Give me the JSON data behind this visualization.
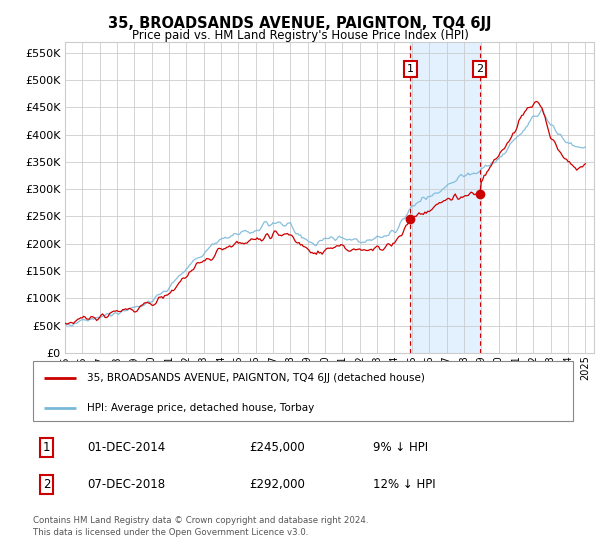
{
  "title": "35, BROADSANDS AVENUE, PAIGNTON, TQ4 6JJ",
  "subtitle": "Price paid vs. HM Land Registry's House Price Index (HPI)",
  "yticks": [
    0,
    50000,
    100000,
    150000,
    200000,
    250000,
    300000,
    350000,
    400000,
    450000,
    500000,
    550000
  ],
  "ylim": [
    0,
    570000
  ],
  "xlim_start": 1995.0,
  "xlim_end": 2025.5,
  "hpi_color": "#7ab8d9",
  "sale_color": "#cc0000",
  "sale1_date": 2014.917,
  "sale1_price": 245000,
  "sale2_date": 2018.917,
  "sale2_price": 292000,
  "marker1_label": "1",
  "marker2_label": "2",
  "shade_color": "#ddeeff",
  "vline_color": "#cc0000",
  "legend_line1": "35, BROADSANDS AVENUE, PAIGNTON, TQ4 6JJ (detached house)",
  "legend_line2": "HPI: Average price, detached house, Torbay",
  "table_row1_num": "1",
  "table_row1_date": "01-DEC-2014",
  "table_row1_price": "£245,000",
  "table_row1_hpi": "9% ↓ HPI",
  "table_row2_num": "2",
  "table_row2_date": "07-DEC-2018",
  "table_row2_price": "£292,000",
  "table_row2_hpi": "12% ↓ HPI",
  "footer": "Contains HM Land Registry data © Crown copyright and database right 2024.\nThis data is licensed under the Open Government Licence v3.0.",
  "bg_color": "#ffffff",
  "grid_color": "#cccccc",
  "xticks": [
    1995,
    1996,
    1997,
    1998,
    1999,
    2000,
    2001,
    2002,
    2003,
    2004,
    2005,
    2006,
    2007,
    2008,
    2009,
    2010,
    2011,
    2012,
    2013,
    2014,
    2015,
    2016,
    2017,
    2018,
    2019,
    2020,
    2021,
    2022,
    2023,
    2024,
    2025
  ],
  "n_points": 361
}
